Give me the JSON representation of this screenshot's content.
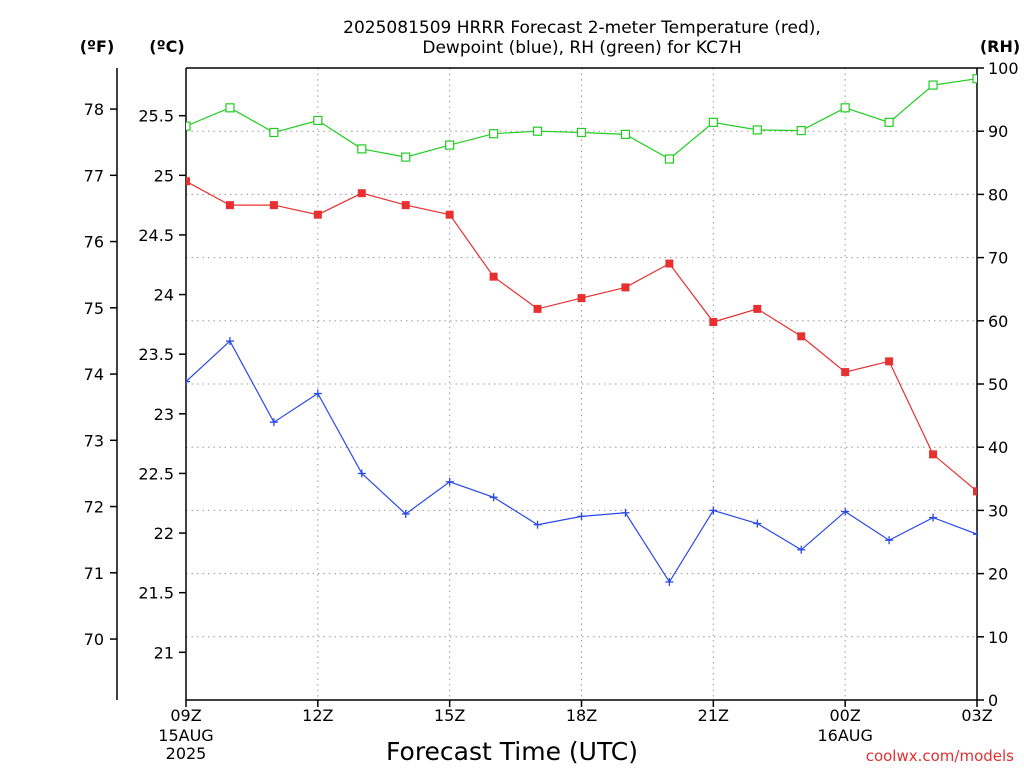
{
  "chart_data": {
    "type": "line",
    "title": [
      "2025081509 HRRR Forecast 2-meter Temperature (red),",
      "Dewpoint (blue), RH (green) for KC7H"
    ],
    "xlabel": "Forecast Time (UTC)",
    "credit": "coolwx.com/models",
    "units": {
      "fahrenheit": "(ºF)",
      "celsius": "(ºC)",
      "rh": "(RH)"
    },
    "x_hours": [
      0,
      1,
      2,
      3,
      4,
      5,
      6,
      7,
      8,
      9,
      10,
      11,
      12,
      13,
      14,
      15,
      16,
      17,
      18
    ],
    "x_range": [
      0,
      18
    ],
    "x_ticks": [
      {
        "hour": 0,
        "label": "09Z",
        "sub": [
          "15AUG",
          "2025"
        ]
      },
      {
        "hour": 3,
        "label": "12Z",
        "sub": []
      },
      {
        "hour": 6,
        "label": "15Z",
        "sub": []
      },
      {
        "hour": 9,
        "label": "18Z",
        "sub": []
      },
      {
        "hour": 12,
        "label": "21Z",
        "sub": []
      },
      {
        "hour": 15,
        "label": "00Z",
        "sub": [
          "16AUG"
        ]
      },
      {
        "hour": 18,
        "label": "03Z",
        "sub": []
      }
    ],
    "celsius_range": [
      20.6,
      25.9
    ],
    "celsius_ticks": [
      "21",
      "21.5",
      "22",
      "22.5",
      "23",
      "23.5",
      "24",
      "24.5",
      "25",
      "25.5"
    ],
    "fahrenheit_ticks": [
      "70",
      "71",
      "72",
      "73",
      "74",
      "75",
      "76",
      "77",
      "78"
    ],
    "rh_range": [
      0,
      100
    ],
    "rh_ticks": [
      "0",
      "10",
      "20",
      "30",
      "40",
      "50",
      "60",
      "70",
      "80",
      "90",
      "100"
    ],
    "grid": true,
    "series": [
      {
        "axis": "celsius",
        "color": "#e83030",
        "marker": "filled-square",
        "values": [
          24.95,
          24.75,
          24.75,
          24.67,
          24.85,
          24.75,
          24.67,
          24.15,
          23.88,
          23.97,
          24.06,
          24.26,
          23.77,
          23.88,
          23.65,
          23.35,
          23.44,
          22.66,
          22.35
        ]
      },
      {
        "axis": "celsius",
        "color": "#2848e8",
        "marker": "plus",
        "values": [
          23.27,
          23.61,
          22.93,
          23.17,
          22.5,
          22.16,
          22.43,
          22.3,
          22.07,
          22.14,
          22.17,
          21.59,
          22.19,
          22.08,
          21.86,
          22.18,
          21.94,
          22.13,
          21.99
        ]
      },
      {
        "axis": "rh",
        "color": "#22cc22",
        "marker": "open-square",
        "values": [
          90.8,
          93.7,
          89.8,
          91.7,
          87.2,
          85.9,
          87.8,
          89.6,
          90.0,
          89.8,
          89.5,
          85.6,
          91.4,
          90.2,
          90.1,
          93.7,
          91.4,
          97.3,
          98.3
        ]
      }
    ]
  }
}
